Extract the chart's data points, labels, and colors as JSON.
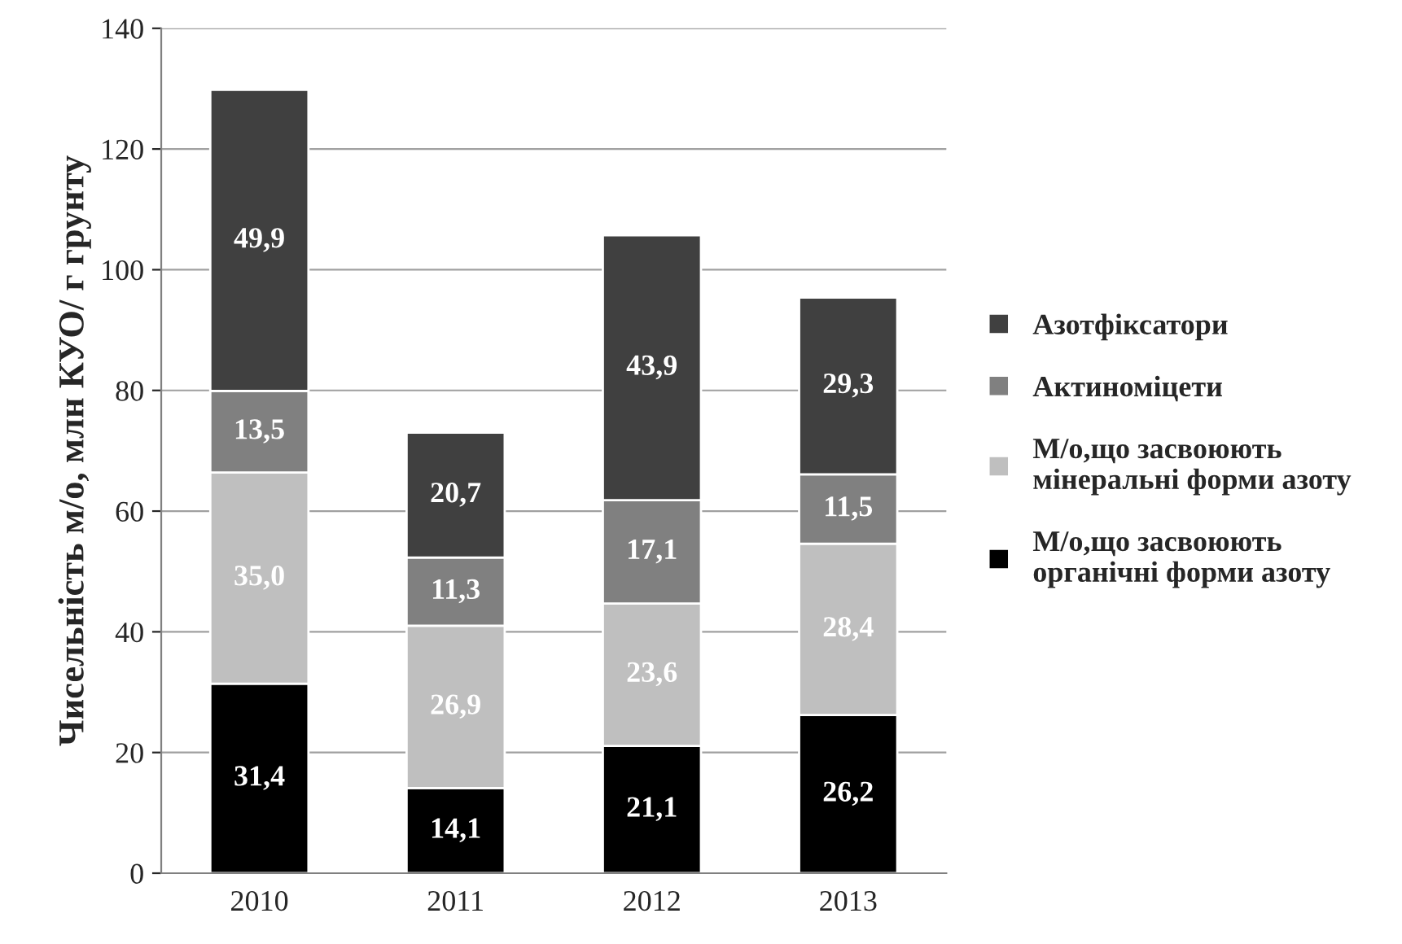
{
  "chart_data": {
    "type": "bar",
    "stacked": true,
    "ylabel": "Чисельність м/о, млн КУО/ г грунту",
    "categories": [
      "2010",
      "2011",
      "2012",
      "2013"
    ],
    "series": [
      {
        "name": "М/о,що засвоюють\nорганічні форми азоту",
        "color": "#000000",
        "values": [
          31.4,
          14.1,
          21.1,
          26.2
        ],
        "value_labels": [
          "31,4",
          "14,1",
          "21,1",
          "26,2"
        ]
      },
      {
        "name": "М/о,що засвоюють\nмінеральні форми азоту",
        "color": "#bfbfbf",
        "values": [
          35.0,
          26.9,
          23.6,
          28.4
        ],
        "value_labels": [
          "35,0",
          "26,9",
          "23,6",
          "28,4"
        ]
      },
      {
        "name": "Актиноміцети",
        "color": "#808080",
        "values": [
          13.5,
          11.3,
          17.1,
          11.5
        ],
        "value_labels": [
          "13,5",
          "11,3",
          "17,1",
          "11,5"
        ]
      },
      {
        "name": "Азотфіксатори",
        "color": "#404040",
        "values": [
          49.9,
          20.7,
          43.9,
          29.3
        ],
        "value_labels": [
          "49,9",
          "20,7",
          "43,9",
          "29,3"
        ]
      }
    ],
    "ylim": [
      0,
      140
    ],
    "yticks": [
      0,
      20,
      40,
      60,
      80,
      100,
      120,
      140
    ],
    "grid": "y",
    "legend": "right"
  }
}
